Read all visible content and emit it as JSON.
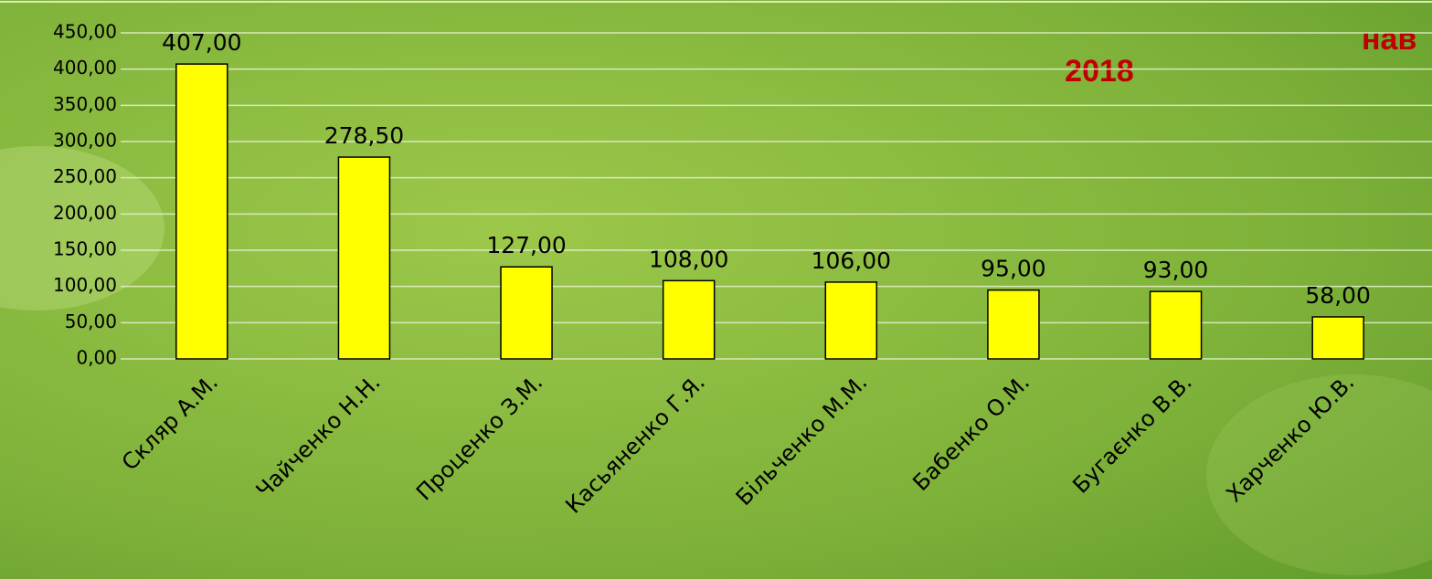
{
  "chart_data": {
    "type": "bar",
    "title": "нав",
    "subtitle": "2018",
    "categories": [
      "Скляр А.М.",
      "Чайченко Н.Н.",
      "Проценко З.М.",
      "Касьяненко Г.Я.",
      "Більченко М.М.",
      "Бабенко О.М.",
      "Бугаєнко В.В.",
      "Харченко Ю.В."
    ],
    "values": [
      407,
      278.5,
      127,
      108,
      106,
      95,
      93,
      58
    ],
    "value_labels": [
      "407,00",
      "278,50",
      "127,00",
      "108,00",
      "106,00",
      "95,00",
      "93,00",
      "58,00"
    ],
    "color": "#ffff00",
    "ylim": [
      0,
      450
    ],
    "yticks": [
      {
        "value": 0,
        "label": "0,00"
      },
      {
        "value": 50,
        "label": "50,00"
      },
      {
        "value": 100,
        "label": "100,00"
      },
      {
        "value": 150,
        "label": "150,00"
      },
      {
        "value": 200,
        "label": "200,00"
      },
      {
        "value": 250,
        "label": "250,00"
      },
      {
        "value": 300,
        "label": "300,00"
      },
      {
        "value": 350,
        "label": "350,00"
      },
      {
        "value": 400,
        "label": "400,00"
      },
      {
        "value": 450,
        "label": "450,00"
      }
    ],
    "grid": true
  }
}
